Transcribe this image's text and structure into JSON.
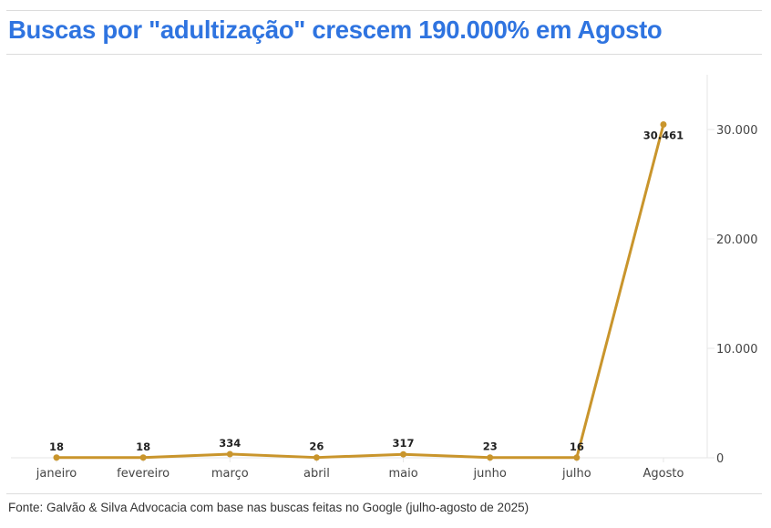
{
  "header": {
    "title": "Buscas por \"adultização\" crescem 190.000% em Agosto"
  },
  "footer": {
    "source": "Fonte: Galvão & Silva Advocacia com base nas buscas feitas no Google (julho-agosto de 2025)"
  },
  "colors": {
    "title": "#2f74e0",
    "line": "#c9952c",
    "grid": "#e6e6e6"
  },
  "chart_data": {
    "type": "line",
    "title": "Buscas por \"adultização\" crescem 190.000% em Agosto",
    "xlabel": "",
    "ylabel": "",
    "categories": [
      "janeiro",
      "fevereiro",
      "março",
      "abril",
      "maio",
      "junho",
      "julho",
      "Agosto"
    ],
    "series": [
      {
        "name": "Buscas por \"adultização\"",
        "values": [
          18,
          18,
          334,
          26,
          317,
          23,
          16,
          30461
        ],
        "data_labels": [
          "18",
          "18",
          "334",
          "26",
          "317",
          "23",
          "16",
          "30.461"
        ]
      }
    ],
    "y_ticks": [
      0,
      10000,
      20000,
      30000
    ],
    "y_tick_labels": [
      "0",
      "10.000",
      "20.000",
      "30.000"
    ],
    "ylim": [
      0,
      35000
    ],
    "y_axis_position": "right",
    "grid": false,
    "legend": "none",
    "source": "Fonte: Galvão & Silva Advocacia com base nas buscas feitas no Google (julho-agosto de 2025)"
  }
}
